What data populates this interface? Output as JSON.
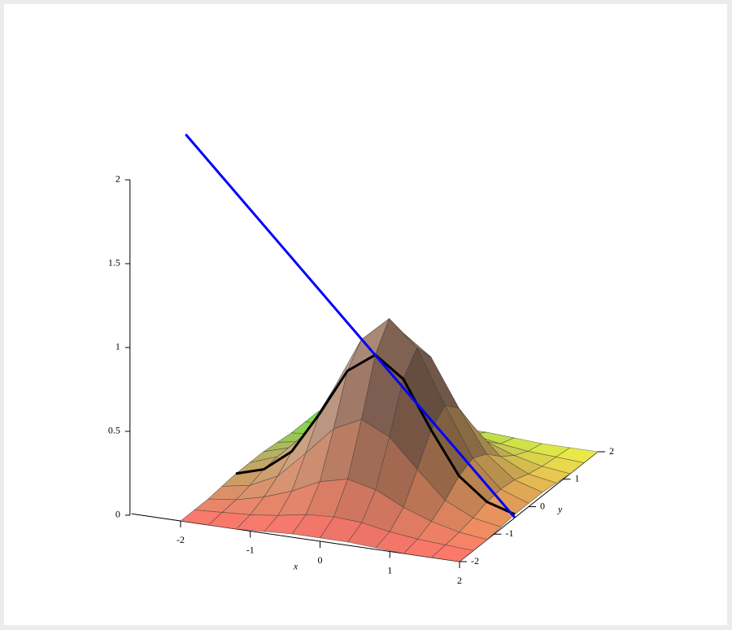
{
  "chart_data": {
    "type": "surface",
    "x": [
      -2,
      -1.6,
      -1.2,
      -0.8,
      -0.4,
      0,
      0.4,
      0.8,
      1.2,
      1.6,
      2
    ],
    "y": [
      -2,
      -1.6,
      -1.2,
      -0.8,
      -0.4,
      0,
      0.4,
      0.8,
      1.2,
      1.6,
      2
    ],
    "z": [
      [
        0,
        0,
        0,
        0.01,
        0.02,
        0.02,
        0.02,
        0.01,
        0,
        0,
        0
      ],
      [
        0,
        0.01,
        0.02,
        0.04,
        0.07,
        0.08,
        0.07,
        0.04,
        0.02,
        0.01,
        0
      ],
      [
        0,
        0.02,
        0.06,
        0.12,
        0.2,
        0.24,
        0.2,
        0.12,
        0.06,
        0.02,
        0
      ],
      [
        0.01,
        0.04,
        0.12,
        0.28,
        0.45,
        0.53,
        0.45,
        0.28,
        0.12,
        0.04,
        0.01
      ],
      [
        0.02,
        0.07,
        0.2,
        0.45,
        0.73,
        0.85,
        0.73,
        0.45,
        0.2,
        0.07,
        0.02
      ],
      [
        0.02,
        0.08,
        0.24,
        0.53,
        0.85,
        1,
        0.85,
        0.53,
        0.24,
        0.08,
        0.02
      ],
      [
        0.02,
        0.07,
        0.2,
        0.45,
        0.73,
        0.85,
        0.73,
        0.45,
        0.2,
        0.07,
        0.02
      ],
      [
        0.01,
        0.04,
        0.12,
        0.28,
        0.45,
        0.53,
        0.45,
        0.28,
        0.12,
        0.04,
        0.01
      ],
      [
        0,
        0.02,
        0.06,
        0.12,
        0.2,
        0.24,
        0.2,
        0.12,
        0.06,
        0.02,
        0
      ],
      [
        0,
        0.01,
        0.02,
        0.04,
        0.07,
        0.08,
        0.07,
        0.04,
        0.02,
        0.01,
        0
      ],
      [
        0,
        0,
        0,
        0.01,
        0.02,
        0.02,
        0.02,
        0.01,
        0,
        0,
        0
      ]
    ],
    "xlim": [
      -2,
      2
    ],
    "ylim": [
      -2,
      2
    ],
    "zlim": [
      0,
      2
    ],
    "xticks": [
      -2,
      -1,
      0,
      1,
      2
    ],
    "yticks": [
      -2,
      -1,
      0,
      1,
      2
    ],
    "zticks": [
      0,
      0.5,
      1,
      1.5,
      2
    ],
    "xlabel": "x",
    "ylabel": "y",
    "curve": {
      "color": "#000000",
      "x": [
        -2,
        -1.6,
        -1.2,
        -0.8,
        -0.4,
        0,
        0.4,
        0.8,
        1.2,
        1.6,
        2
      ],
      "y": [
        -0.4,
        -0.4,
        -0.4,
        -0.4,
        -0.4,
        -0.4,
        -0.4,
        -0.4,
        -0.4,
        -0.4,
        -0.4
      ],
      "z": [
        0.02,
        0.07,
        0.2,
        0.45,
        0.73,
        0.85,
        0.73,
        0.45,
        0.2,
        0.07,
        0.02
      ]
    },
    "line": {
      "color": "#0000ff",
      "x": [
        -2.72,
        2
      ],
      "y": [
        -0.4,
        -0.4
      ],
      "z": [
        2,
        0
      ]
    }
  }
}
